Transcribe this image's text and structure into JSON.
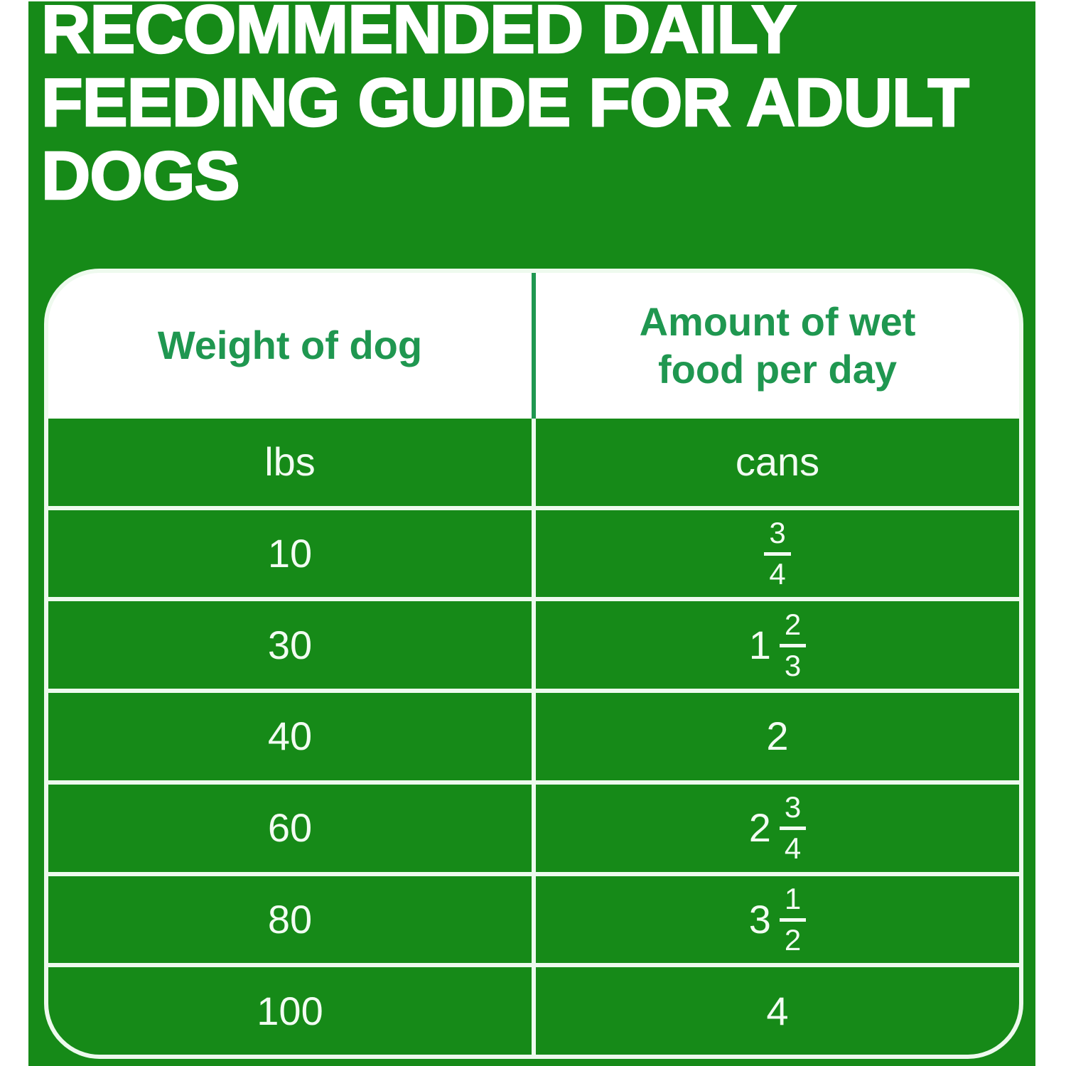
{
  "title": {
    "line1": "RECOMMENDED DAILY",
    "line2": "FEEDING GUIDE FOR ADULT",
    "line3": "DOGS"
  },
  "table": {
    "columns": [
      {
        "label": "Weight of dog"
      },
      {
        "label": "Amount of wet food per day"
      }
    ],
    "units": {
      "weight": "lbs",
      "amount": "cans"
    },
    "rows": [
      {
        "weight": "10",
        "amount": {
          "whole": "",
          "num": "3",
          "den": "4"
        }
      },
      {
        "weight": "30",
        "amount": {
          "whole": "1",
          "num": "2",
          "den": "3"
        }
      },
      {
        "weight": "40",
        "amount": {
          "whole": "2",
          "num": "",
          "den": ""
        }
      },
      {
        "weight": "60",
        "amount": {
          "whole": "2",
          "num": "3",
          "den": "4"
        }
      },
      {
        "weight": "80",
        "amount": {
          "whole": "3",
          "num": "1",
          "den": "2"
        }
      },
      {
        "weight": "100",
        "amount": {
          "whole": "4",
          "num": "",
          "den": ""
        }
      }
    ]
  },
  "colors": {
    "green": "#168a18",
    "emerald": "#1f9750",
    "line": "#eefaee",
    "celltext": "#f2fcf2",
    "white": "#ffffff"
  }
}
